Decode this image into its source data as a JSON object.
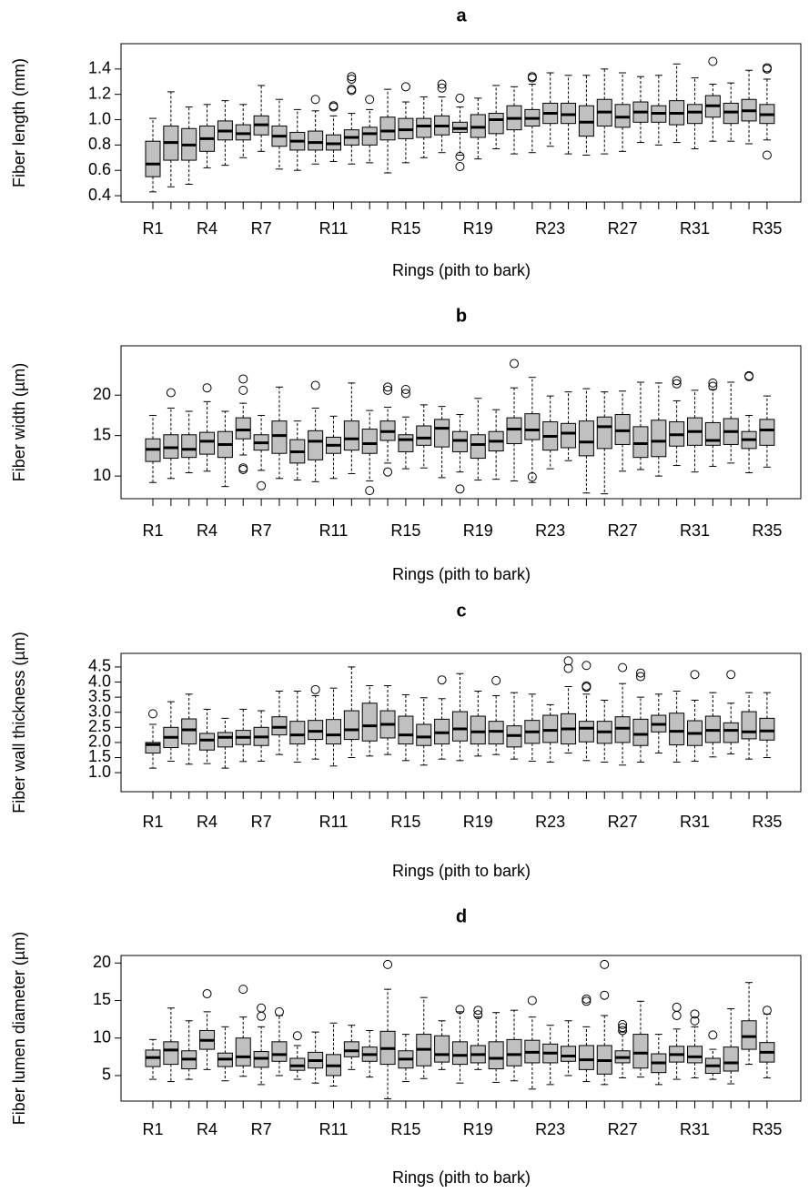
{
  "chart_data": [
    {
      "type": "boxplot",
      "title": "a",
      "x_label": "Rings (pith to bark)",
      "y_label": "Fiber length (mm)",
      "color": "#c0c0c0",
      "categories": [
        "R1",
        null,
        null,
        "R4",
        null,
        null,
        "R7",
        null,
        null,
        null,
        "R11",
        null,
        null,
        null,
        "R15",
        null,
        null,
        null,
        "R19",
        null,
        null,
        null,
        "R23",
        null,
        null,
        null,
        "R27",
        null,
        null,
        null,
        "R31",
        null,
        null,
        null,
        "R35"
      ],
      "min": [
        0.43,
        0.47,
        0.49,
        0.62,
        0.64,
        0.7,
        0.75,
        0.61,
        0.6,
        0.65,
        0.67,
        0.65,
        0.66,
        0.58,
        0.66,
        0.7,
        0.74,
        0.72,
        0.69,
        0.77,
        0.73,
        0.74,
        0.79,
        0.73,
        0.72,
        0.73,
        0.75,
        0.82,
        0.8,
        0.82,
        0.77,
        0.83,
        0.83,
        0.81,
        0.84
      ],
      "q1": [
        0.55,
        0.68,
        0.68,
        0.75,
        0.84,
        0.84,
        0.88,
        0.79,
        0.76,
        0.76,
        0.76,
        0.8,
        0.8,
        0.84,
        0.85,
        0.86,
        0.88,
        0.9,
        0.86,
        0.89,
        0.92,
        0.95,
        0.97,
        0.97,
        0.87,
        0.95,
        0.94,
        0.98,
        0.98,
        0.96,
        0.97,
        1.02,
        0.97,
        0.99,
        0.97
      ],
      "median": [
        0.65,
        0.82,
        0.8,
        0.85,
        0.91,
        0.89,
        0.96,
        0.87,
        0.83,
        0.82,
        0.81,
        0.86,
        0.89,
        0.91,
        0.92,
        0.95,
        0.95,
        0.93,
        0.94,
        1.0,
        1.01,
        1.01,
        1.05,
        1.04,
        0.98,
        1.06,
        1.02,
        1.06,
        1.05,
        1.05,
        1.06,
        1.11,
        1.06,
        1.07,
        1.04
      ],
      "q3": [
        0.83,
        0.95,
        0.93,
        0.95,
        0.99,
        0.96,
        1.03,
        0.95,
        0.9,
        0.91,
        0.88,
        0.92,
        0.94,
        1.02,
        1.01,
        1.01,
        1.03,
        0.98,
        1.04,
        1.05,
        1.11,
        1.08,
        1.13,
        1.13,
        1.11,
        1.16,
        1.12,
        1.14,
        1.11,
        1.15,
        1.12,
        1.19,
        1.13,
        1.16,
        1.12
      ],
      "max": [
        1.01,
        1.22,
        1.1,
        1.12,
        1.15,
        1.12,
        1.27,
        1.16,
        1.08,
        1.07,
        1.03,
        1.05,
        1.08,
        1.24,
        1.14,
        1.18,
        1.18,
        1.1,
        1.17,
        1.27,
        1.26,
        1.28,
        1.37,
        1.35,
        1.35,
        1.4,
        1.37,
        1.34,
        1.35,
        1.44,
        1.33,
        1.28,
        1.29,
        1.39,
        1.32
      ],
      "outliers": [
        [],
        [],
        [],
        [],
        [],
        [],
        [],
        [],
        [],
        [
          1.16
        ],
        [
          1.1,
          1.11
        ],
        [
          1.23,
          1.24,
          1.32,
          1.34
        ],
        [
          1.16
        ],
        [],
        [
          1.26
        ],
        [],
        [
          1.25,
          1.28
        ],
        [
          0.63,
          0.71,
          1.17
        ],
        [],
        [],
        [],
        [
          1.33,
          1.34
        ],
        [],
        [],
        [],
        [],
        [],
        [],
        [],
        [],
        [],
        [
          1.46
        ],
        [],
        [],
        [
          0.72,
          1.4,
          1.41
        ]
      ],
      "ylim": [
        0.35,
        1.6
      ],
      "yticks": [
        0.4,
        0.6,
        0.8,
        {
          "value": 1,
          "label": "1.0"
        },
        1.2,
        1.4
      ]
    },
    {
      "type": "boxplot",
      "title": "b",
      "x_label": "Rings (pith to bark)",
      "y_label": "Fiber width (µm)",
      "color": "#c0c0c0",
      "categories": [
        "R1",
        null,
        null,
        "R4",
        null,
        null,
        "R7",
        null,
        null,
        null,
        "R11",
        null,
        null,
        null,
        "R15",
        null,
        null,
        null,
        "R19",
        null,
        null,
        null,
        "R23",
        null,
        null,
        null,
        "R27",
        null,
        null,
        null,
        "R31",
        null,
        null,
        null,
        "R35"
      ],
      "min": [
        9.2,
        9.7,
        10.4,
        10.6,
        8.7,
        12.6,
        10.7,
        9.7,
        9.5,
        9.3,
        9.7,
        10.3,
        9.4,
        11.6,
        10.9,
        11.0,
        9.8,
        10.5,
        9.5,
        9.6,
        9.4,
        9.2,
        10.9,
        11.9,
        7.9,
        7.8,
        10.6,
        10.8,
        10.0,
        11.3,
        10.5,
        11.2,
        11.6,
        10.4,
        11.1
      ],
      "q1": [
        11.8,
        12.2,
        12.3,
        12.7,
        12.3,
        14.6,
        13.2,
        12.8,
        11.6,
        12.0,
        12.8,
        13.2,
        12.8,
        14.4,
        13.0,
        13.8,
        13.6,
        13.0,
        12.2,
        13.1,
        14.0,
        14.5,
        13.2,
        13.5,
        12.5,
        13.4,
        13.9,
        12.3,
        12.4,
        13.7,
        13.8,
        13.8,
        13.9,
        13.4,
        13.8
      ],
      "median": [
        13.3,
        13.5,
        13.3,
        14.3,
        13.9,
        15.7,
        14.1,
        15.0,
        13.0,
        14.3,
        13.8,
        14.6,
        14.0,
        15.5,
        14.5,
        14.7,
        15.9,
        14.4,
        13.9,
        14.3,
        15.8,
        15.7,
        14.9,
        15.3,
        14.2,
        16.1,
        15.6,
        14.0,
        14.3,
        15.1,
        15.5,
        14.4,
        15.5,
        14.5,
        15.7
      ],
      "q3": [
        14.6,
        15.1,
        15.1,
        15.4,
        15.5,
        17.2,
        15.1,
        16.8,
        14.5,
        15.6,
        14.8,
        16.8,
        15.8,
        16.8,
        15.1,
        16.2,
        17.0,
        15.5,
        15.1,
        15.5,
        17.2,
        17.7,
        16.7,
        16.5,
        16.8,
        17.3,
        17.6,
        16.1,
        16.9,
        16.7,
        17.2,
        16.6,
        17.1,
        15.5,
        17.0
      ],
      "max": [
        17.5,
        18.4,
        18.0,
        19.2,
        18.0,
        19.0,
        17.5,
        21.0,
        16.8,
        18.4,
        17.4,
        21.5,
        18.1,
        18.5,
        17.3,
        18.8,
        18.6,
        17.6,
        19.6,
        18.2,
        20.9,
        22.2,
        19.9,
        20.4,
        20.8,
        20.4,
        20.5,
        21.6,
        21.5,
        19.3,
        20.6,
        20.7,
        21.6,
        17.5,
        19.9
      ],
      "outliers": [
        [],
        [
          20.3
        ],
        [],
        [
          20.9
        ],
        [],
        [
          11.0,
          10.8,
          20.6,
          22.0
        ],
        [
          8.8
        ],
        [],
        [],
        [
          21.2
        ],
        [],
        [],
        [
          8.2
        ],
        [
          10.5,
          20.6,
          21.0
        ],
        [
          20.2,
          20.7
        ],
        [],
        [],
        [
          8.4
        ],
        [],
        [],
        [
          23.9
        ],
        [
          9.9
        ],
        [],
        [],
        [],
        [],
        [],
        [],
        [],
        [
          21.4,
          21.8
        ],
        [],
        [
          21.1,
          21.5
        ],
        [],
        [
          22.3,
          22.4
        ],
        []
      ],
      "ylim": [
        7.2,
        26.1
      ],
      "yticks": [
        10,
        15,
        20
      ]
    },
    {
      "type": "boxplot",
      "title": "c",
      "x_label": "Rings (pith to bark)",
      "y_label": "Fiber wall thickness (µm)",
      "color": "#c0c0c0",
      "categories": [
        "R1",
        null,
        null,
        "R4",
        null,
        null,
        "R7",
        null,
        null,
        null,
        "R11",
        null,
        null,
        null,
        "R15",
        null,
        null,
        null,
        "R19",
        null,
        null,
        null,
        "R23",
        null,
        null,
        null,
        "R27",
        null,
        null,
        null,
        "R31",
        null,
        null,
        null,
        "R35"
      ],
      "min": [
        1.15,
        1.38,
        1.28,
        1.3,
        1.15,
        1.37,
        1.38,
        1.6,
        1.35,
        1.45,
        1.22,
        1.5,
        1.55,
        1.6,
        1.4,
        1.25,
        1.45,
        1.4,
        1.55,
        1.6,
        1.45,
        1.38,
        1.35,
        1.65,
        1.4,
        1.35,
        1.25,
        1.35,
        1.65,
        1.35,
        1.38,
        1.52,
        1.62,
        1.45,
        1.5
      ],
      "q1": [
        1.65,
        1.83,
        1.95,
        1.75,
        1.85,
        1.93,
        1.9,
        2.25,
        1.95,
        2.1,
        1.95,
        2.1,
        2.05,
        2.15,
        1.95,
        1.9,
        1.95,
        2.05,
        1.95,
        1.95,
        1.85,
        1.97,
        2.0,
        1.95,
        2.02,
        1.97,
        2.0,
        1.9,
        2.35,
        1.92,
        1.9,
        2.0,
        2.0,
        2.12,
        2.08
      ],
      "median": [
        1.93,
        2.17,
        2.42,
        2.08,
        2.17,
        2.17,
        2.18,
        2.5,
        2.25,
        2.37,
        2.25,
        2.42,
        2.55,
        2.6,
        2.25,
        2.18,
        2.32,
        2.45,
        2.35,
        2.37,
        2.23,
        2.35,
        2.4,
        2.45,
        2.47,
        2.35,
        2.47,
        2.27,
        2.6,
        2.37,
        2.3,
        2.4,
        2.4,
        2.35,
        2.38
      ],
      "q3": [
        2.0,
        2.5,
        2.78,
        2.3,
        2.33,
        2.4,
        2.5,
        2.85,
        2.7,
        2.73,
        2.76,
        3.05,
        3.3,
        3.05,
        2.87,
        2.6,
        2.77,
        3.02,
        2.87,
        2.7,
        2.55,
        2.73,
        2.9,
        2.95,
        2.7,
        2.7,
        2.85,
        2.77,
        2.9,
        2.97,
        2.72,
        2.87,
        2.65,
        3.02,
        2.8
      ],
      "max": [
        2.6,
        3.35,
        3.6,
        3.1,
        2.8,
        3.1,
        3.05,
        3.7,
        3.7,
        3.55,
        3.8,
        4.5,
        3.88,
        3.88,
        3.58,
        3.48,
        3.45,
        4.28,
        3.7,
        3.55,
        3.65,
        3.6,
        3.25,
        3.85,
        3.6,
        3.4,
        3.95,
        3.5,
        3.6,
        3.7,
        3.4,
        3.65,
        3.3,
        3.65,
        3.65
      ],
      "outliers": [
        [
          2.95
        ],
        [],
        [],
        [],
        [],
        [],
        [],
        [],
        [],
        [
          3.75
        ],
        [],
        [],
        [],
        [],
        [],
        [],
        [
          4.07
        ],
        [],
        [],
        [
          4.05
        ],
        [],
        [],
        [],
        [
          4.45,
          4.7
        ],
        [
          3.83,
          3.87,
          4.55
        ],
        [],
        [
          4.48
        ],
        [
          4.18,
          4.3
        ],
        [],
        [],
        [
          4.25
        ],
        [],
        [
          4.25
        ],
        [],
        []
      ],
      "ylim": [
        0.37,
        4.95
      ],
      "yticks": [
        {
          "value": 1,
          "label": "1.0"
        },
        1.5,
        {
          "value": 2,
          "label": "2.0"
        },
        2.5,
        {
          "value": 3,
          "label": "3.0"
        },
        3.5,
        {
          "value": 4,
          "label": "4.0"
        },
        4.5
      ]
    },
    {
      "type": "boxplot",
      "title": "d",
      "x_label": "Rings (pith to bark)",
      "y_label": "Fiber lumen diameter (µm)",
      "color": "#c0c0c0",
      "categories": [
        "R1",
        null,
        null,
        "R4",
        null,
        null,
        "R7",
        null,
        null,
        null,
        "R11",
        null,
        null,
        null,
        "R15",
        null,
        null,
        null,
        "R19",
        null,
        null,
        null,
        "R23",
        null,
        null,
        null,
        "R27",
        null,
        null,
        null,
        "R31",
        null,
        null,
        null,
        "R35"
      ],
      "min": [
        4.5,
        4.2,
        4.5,
        5.8,
        4.3,
        4.9,
        3.8,
        5.0,
        4.5,
        4.0,
        3.6,
        5.8,
        4.8,
        1.9,
        4.2,
        4.6,
        5.8,
        4.0,
        5.8,
        4.1,
        4.3,
        3.2,
        3.8,
        5.0,
        4.2,
        3.8,
        4.7,
        4.8,
        3.8,
        4.5,
        4.7,
        4.5,
        3.9,
        6.5,
        4.7
      ],
      "q1": [
        6.2,
        6.5,
        5.9,
        8.5,
        6.2,
        6.3,
        6.1,
        6.9,
        5.7,
        6.0,
        5.0,
        7.5,
        6.9,
        6.5,
        6.0,
        6.3,
        6.8,
        6.5,
        6.7,
        5.9,
        6.3,
        6.7,
        6.7,
        6.9,
        5.8,
        5.2,
        6.7,
        6.0,
        5.4,
        6.8,
        6.7,
        5.3,
        5.6,
        8.5,
        6.8
      ],
      "median": [
        7.4,
        8.4,
        7.2,
        9.7,
        7.2,
        7.5,
        7.3,
        7.8,
        6.3,
        7.0,
        6.3,
        8.3,
        7.8,
        8.6,
        7.2,
        8.5,
        7.8,
        7.7,
        7.8,
        7.3,
        7.8,
        8.1,
        8.0,
        7.6,
        7.1,
        7.0,
        7.4,
        8.0,
        6.7,
        7.8,
        7.5,
        6.3,
        6.7,
        10.2,
        8.1
      ],
      "q3": [
        8.4,
        9.5,
        8.3,
        11.0,
        8.0,
        10.0,
        8.2,
        9.5,
        7.3,
        8.1,
        7.8,
        9.5,
        8.8,
        10.9,
        8.3,
        10.5,
        10.3,
        9.5,
        9.0,
        9.5,
        9.8,
        9.7,
        9.2,
        8.9,
        9.0,
        9.0,
        8.3,
        10.5,
        7.9,
        8.9,
        8.9,
        7.3,
        8.8,
        12.3,
        9.4
      ],
      "max": [
        9.8,
        14.0,
        12.3,
        13.5,
        11.5,
        12.8,
        11.5,
        13.0,
        9.0,
        10.8,
        12.0,
        11.7,
        11.0,
        16.5,
        10.5,
        15.4,
        12.3,
        13.5,
        12.8,
        13.4,
        13.7,
        12.8,
        11.7,
        12.3,
        11.5,
        13.0,
        10.8,
        14.9,
        10.5,
        11.2,
        11.5,
        8.5,
        13.9,
        17.4,
        13.2
      ],
      "outliers": [
        [],
        [],
        [],
        [
          15.9
        ],
        [],
        [
          16.5
        ],
        [
          12.9,
          14.0
        ],
        [
          13.5
        ],
        [
          10.3
        ],
        [],
        [],
        [],
        [],
        [
          19.8
        ],
        [],
        [],
        [],
        [
          13.8
        ],
        [
          13.1,
          13.7
        ],
        [],
        [],
        [
          15.0
        ],
        [],
        [],
        [
          14.9,
          15.2
        ],
        [
          15.7,
          19.8
        ],
        [
          11.0,
          11.4,
          11.8
        ],
        [],
        [],
        [
          13.0,
          14.1
        ],
        [
          12.3,
          13.2
        ],
        [
          10.4
        ],
        [],
        [],
        [
          13.7
        ]
      ],
      "ylim": [
        1.6,
        21
      ],
      "yticks": [
        5,
        10,
        15,
        20
      ]
    }
  ]
}
